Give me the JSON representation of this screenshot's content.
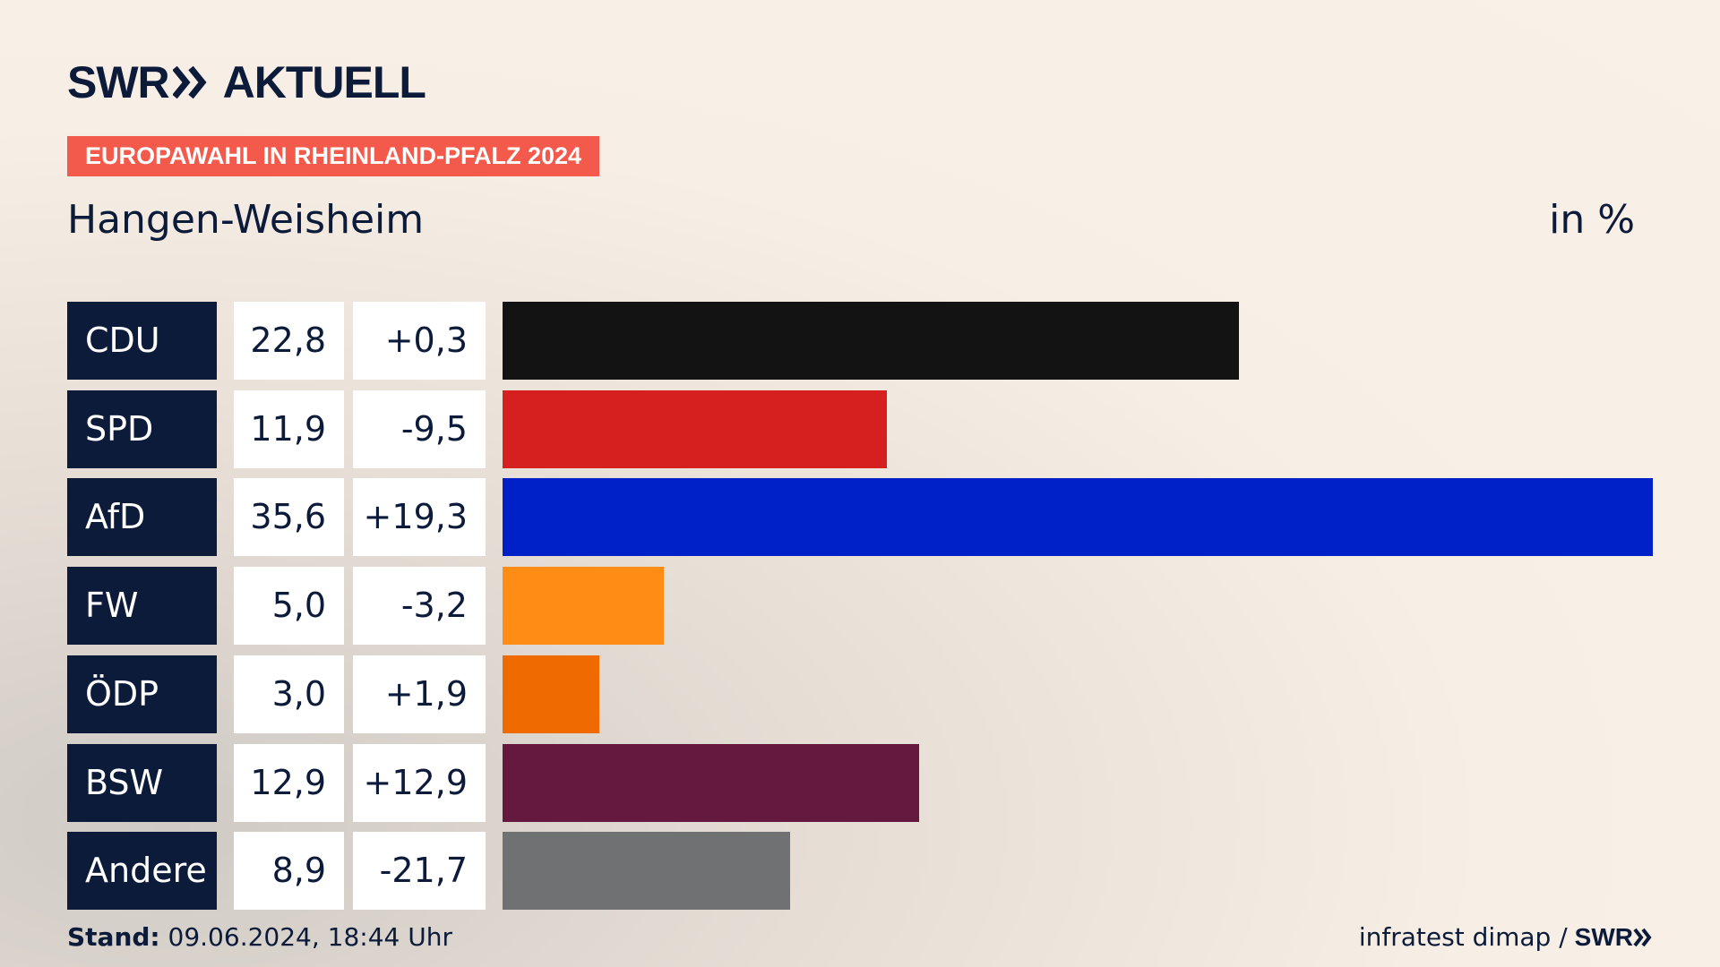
{
  "header": {
    "logo_text_left": "SWR",
    "logo_text_right": "AKTUELL",
    "tag": "EUROPAWAHL IN RHEINLAND-PFALZ 2024",
    "place": "Hangen-Weisheim",
    "unit": "in %"
  },
  "footer": {
    "stand_label": "Stand:",
    "stand_value": "09.06.2024, 18:44 Uhr",
    "source": "infratest dimap /",
    "source_logo": "SWR"
  },
  "colors": {
    "navy": "#0c1b3a",
    "tag": "#f45a4b"
  },
  "chart_data": {
    "type": "bar",
    "title": "Hangen-Weisheim",
    "unit": "in %",
    "categories": [
      "CDU",
      "SPD",
      "AfD",
      "FW",
      "ÖDP",
      "BSW",
      "Andere"
    ],
    "values": [
      22.8,
      11.9,
      35.6,
      5.0,
      3.0,
      12.9,
      8.9
    ],
    "value_labels": [
      "22,8",
      "11,9",
      "35,6",
      "5,0",
      "3,0",
      "12,9",
      "8,9"
    ],
    "diff_labels": [
      "+0,3",
      "-9,5",
      "+19,3",
      "-3,2",
      "+1,9",
      "+12,9",
      "-21,7"
    ],
    "colors": [
      "#131313",
      "#d61f1f",
      "#0020c8",
      "#ff8c14",
      "#ef6a00",
      "#66193f",
      "#707173"
    ],
    "xlim": [
      0,
      35.6
    ]
  }
}
